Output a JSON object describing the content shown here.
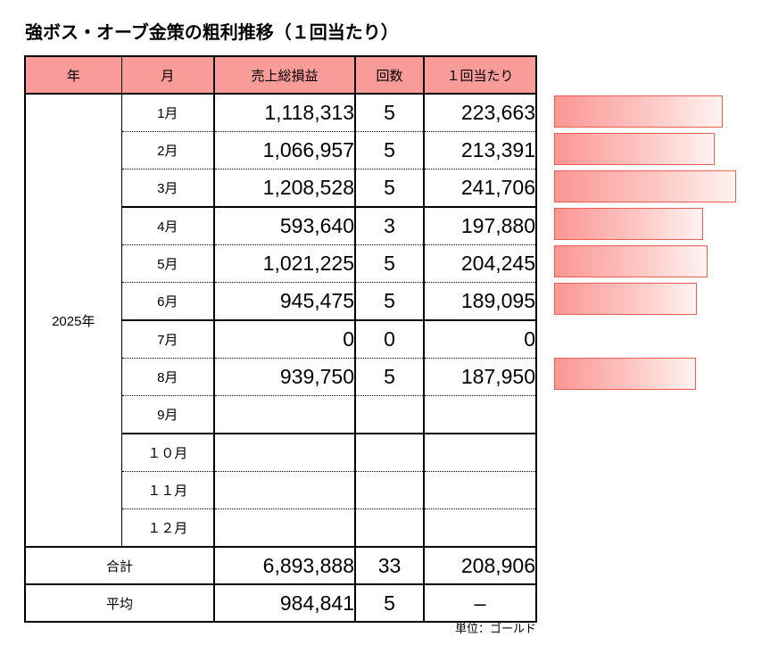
{
  "title": "強ボス・オーブ金策の粗利推移（１回当たり）",
  "unit_note": "単位：ゴールド",
  "colors": {
    "header_bg": "#F99B98",
    "bar_border": "#EE5D55",
    "bar_fill_start": "#FB9695",
    "bar_fill_end": "#FEF3F1",
    "grid_line": "#000000"
  },
  "table": {
    "headers": {
      "year": "年",
      "month": "月",
      "gross": "売上総損益",
      "count": "回数",
      "per_run": "１回当たり"
    },
    "year_label": "2025年",
    "rows": [
      {
        "month": "1月",
        "gross": "1,118,313",
        "count": "5",
        "per_run": "223,663"
      },
      {
        "month": "2月",
        "gross": "1,066,957",
        "count": "5",
        "per_run": "213,391"
      },
      {
        "month": "3月",
        "gross": "1,208,528",
        "count": "5",
        "per_run": "241,706"
      },
      {
        "month": "4月",
        "gross": "593,640",
        "count": "3",
        "per_run": "197,880"
      },
      {
        "month": "5月",
        "gross": "1,021,225",
        "count": "5",
        "per_run": "204,245"
      },
      {
        "month": "6月",
        "gross": "945,475",
        "count": "5",
        "per_run": "189,095"
      },
      {
        "month": "7月",
        "gross": "0",
        "count": "0",
        "per_run": "0"
      },
      {
        "month": "8月",
        "gross": "939,750",
        "count": "5",
        "per_run": "187,950"
      },
      {
        "month": "9月",
        "gross": "",
        "count": "",
        "per_run": ""
      },
      {
        "month": "１０月",
        "gross": "",
        "count": "",
        "per_run": ""
      },
      {
        "month": "１１月",
        "gross": "",
        "count": "",
        "per_run": ""
      },
      {
        "month": "１２月",
        "gross": "",
        "count": "",
        "per_run": ""
      }
    ],
    "total": {
      "label": "合計",
      "gross": "6,893,888",
      "count": "33",
      "per_run": "208,906"
    },
    "average": {
      "label": "平均",
      "gross": "984,841",
      "count": "5",
      "per_run": "–"
    }
  },
  "chart_data": {
    "type": "bar",
    "orientation": "horizontal",
    "title": "１回当たり",
    "categories": [
      "1月",
      "2月",
      "3月",
      "4月",
      "5月",
      "6月",
      "7月",
      "8月"
    ],
    "values": [
      223663,
      213391,
      241706,
      197880,
      204245,
      189095,
      0,
      187950
    ],
    "max_value": 241706,
    "xlim": [
      0,
      241706
    ],
    "grid": false,
    "legend": false
  }
}
